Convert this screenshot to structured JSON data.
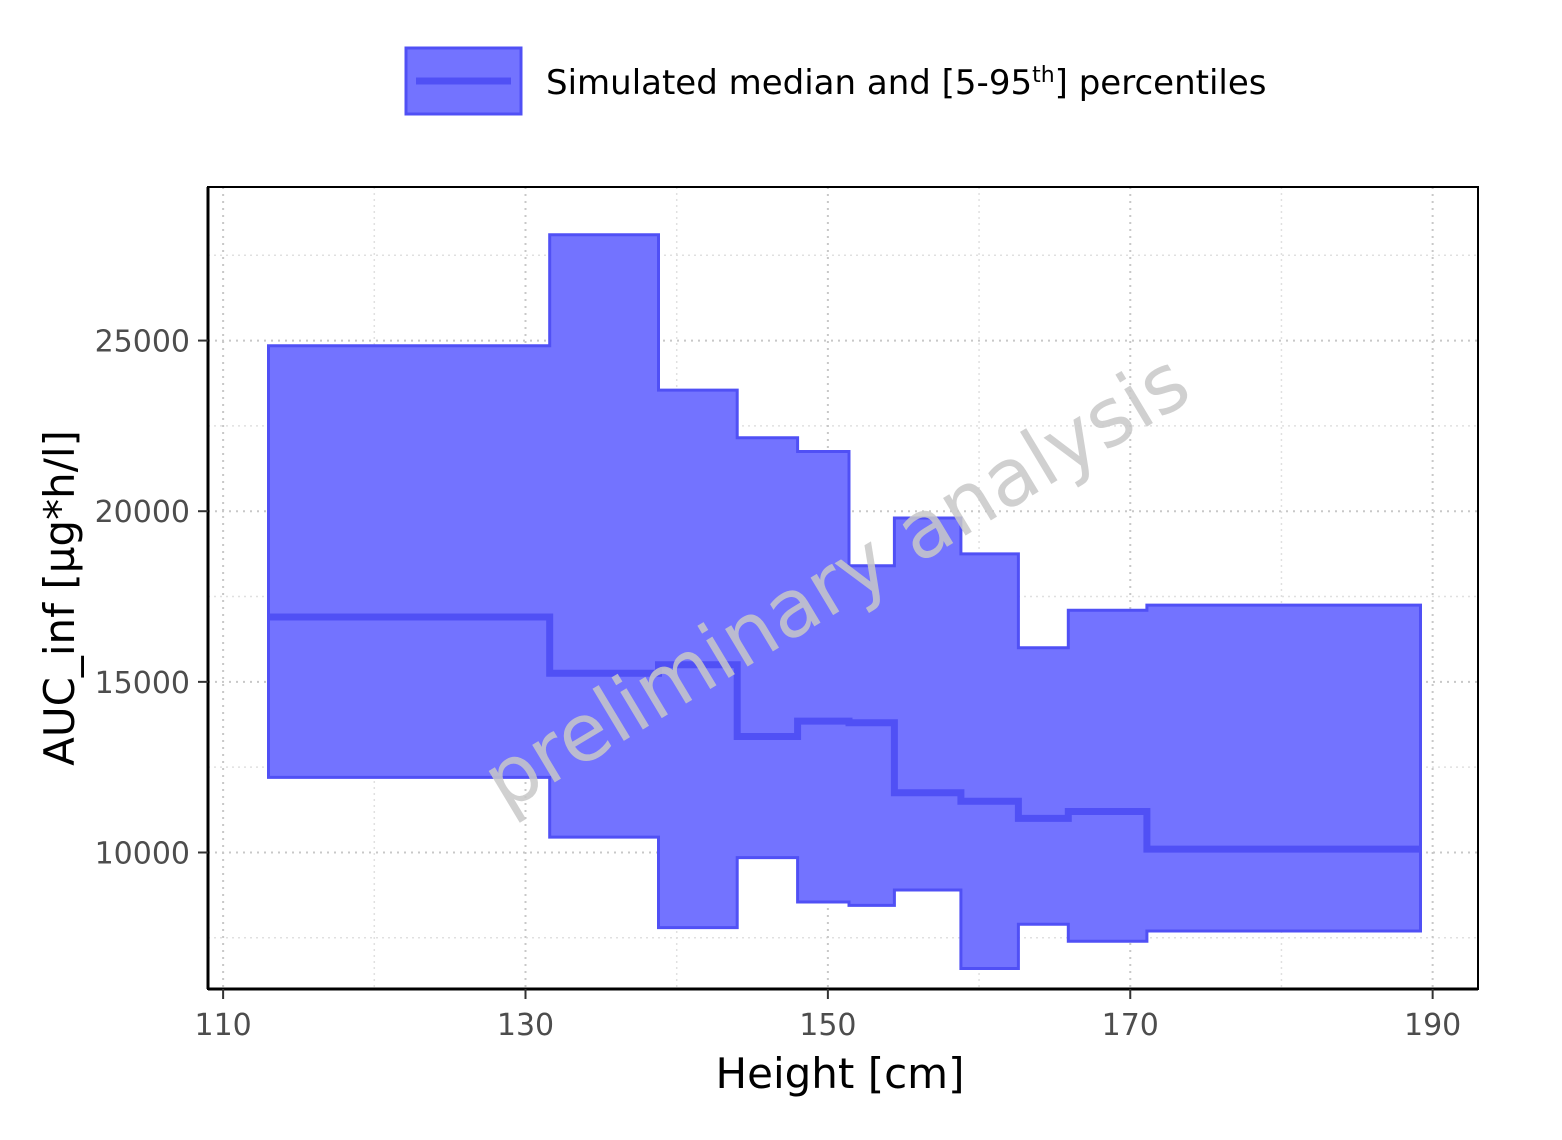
{
  "chart_data": {
    "type": "area",
    "title": "",
    "xlabel": "Height [cm]",
    "ylabel": "AUC_inf [µg*h/l]",
    "xlim": [
      109,
      193
    ],
    "ylim": [
      6000,
      29500
    ],
    "x_ticks": [
      110,
      130,
      150,
      170,
      190
    ],
    "x_tick_labels": [
      "110",
      "130",
      "150",
      "170",
      "190"
    ],
    "y_ticks": [
      10000,
      15000,
      20000,
      25000
    ],
    "y_tick_labels": [
      "10000",
      "15000",
      "20000",
      "25000"
    ],
    "grid": true,
    "legend": {
      "position": "top",
      "label_prefix": "Simulated median and [5-95",
      "label_superscript": "th",
      "label_suffix": "] percentiles"
    },
    "watermark": "preliminary analysis",
    "colors": {
      "fill": "#7373ff",
      "line": "#5050f5"
    },
    "bins": [
      {
        "x_start": 113.0,
        "x_end": 131.6,
        "median": 16900,
        "p5": 12200,
        "p95": 24850
      },
      {
        "x_start": 131.6,
        "x_end": 138.8,
        "median": 15250,
        "p5": 10450,
        "p95": 28100
      },
      {
        "x_start": 138.8,
        "x_end": 144.0,
        "median": 15500,
        "p5": 7800,
        "p95": 23550
      },
      {
        "x_start": 144.0,
        "x_end": 148.0,
        "median": 13400,
        "p5": 9850,
        "p95": 22150
      },
      {
        "x_start": 148.0,
        "x_end": 151.4,
        "median": 13850,
        "p5": 8550,
        "p95": 21750
      },
      {
        "x_start": 151.4,
        "x_end": 154.4,
        "median": 13800,
        "p5": 8450,
        "p95": 18400
      },
      {
        "x_start": 154.4,
        "x_end": 158.8,
        "median": 11750,
        "p5": 8900,
        "p95": 19800
      },
      {
        "x_start": 158.8,
        "x_end": 162.6,
        "median": 11500,
        "p5": 6600,
        "p95": 18750
      },
      {
        "x_start": 162.6,
        "x_end": 165.9,
        "median": 11000,
        "p5": 7900,
        "p95": 16000
      },
      {
        "x_start": 165.9,
        "x_end": 171.1,
        "median": 11200,
        "p5": 7400,
        "p95": 17100
      },
      {
        "x_start": 171.1,
        "x_end": 189.2,
        "median": 10100,
        "p5": 7700,
        "p95": 17250
      }
    ]
  }
}
